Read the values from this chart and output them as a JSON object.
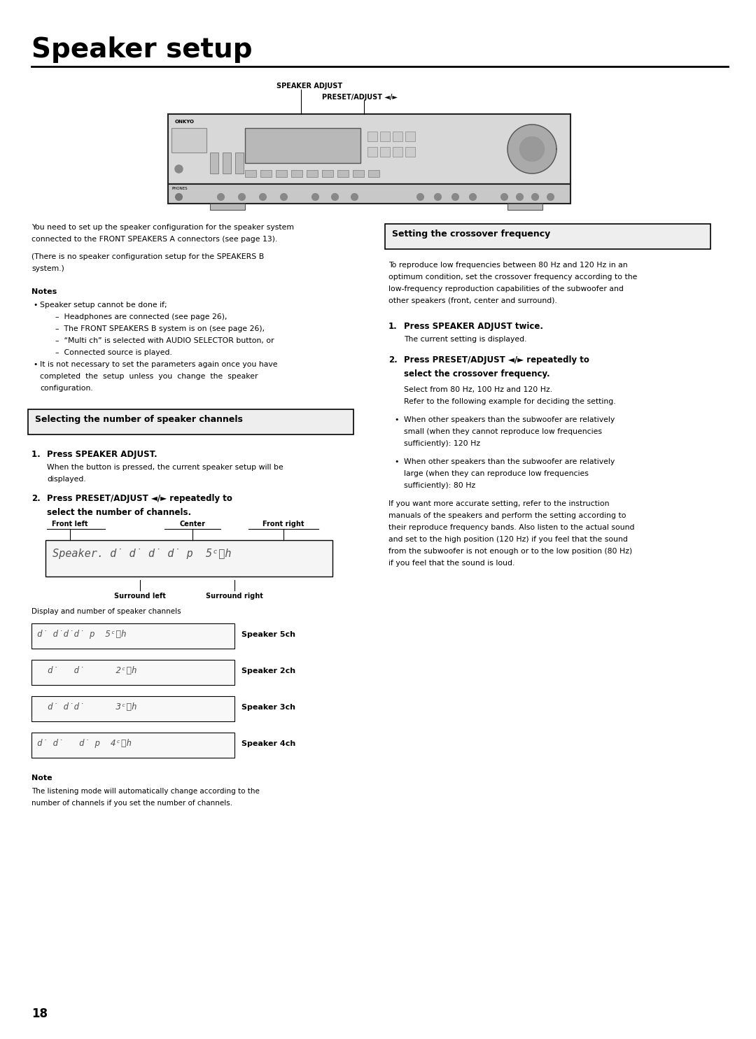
{
  "title": "Speaker setup",
  "bg_color": "#ffffff",
  "text_color": "#000000",
  "page_number": "18",
  "label_speaker_adjust": "SPEAKER ADJUST",
  "label_preset_adjust": "PRESET/ADJUST ◄/►",
  "section1_header": "Selecting the number of speaker channels",
  "section2_header": "Setting the crossover frequency",
  "note_header": "Note",
  "notes_header": "Notes"
}
